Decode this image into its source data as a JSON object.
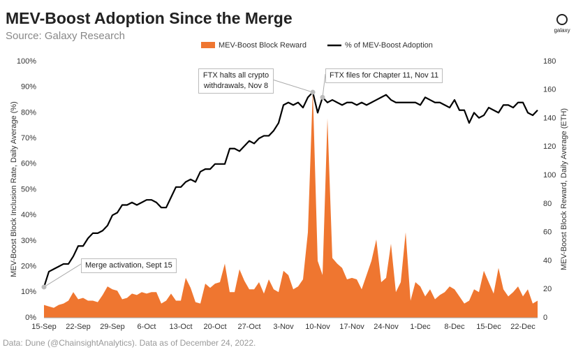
{
  "chart_data": {
    "type": "combo",
    "title": "MEV-Boost Adoption Since the Merge",
    "subtitle": "Source: Galaxy Research",
    "logo": "galaxy",
    "source": "Data: Dune (@ChainsightAnalytics). Data as of December 24, 2022.",
    "y_label": "MEV-Boost Block Inclusion Rate, Daily Average (%)",
    "y2_label": "MEV-Boost Block Reward, Daily Average (ETH)",
    "annotations": [
      "Merge activation, Sept 15",
      "FTX halts all crypto withdrawals, Nov 8",
      "FTX files for Chapter 11, Nov 11"
    ],
    "categories": [
      "15-Sep",
      null,
      null,
      null,
      null,
      null,
      null,
      "22-Sep",
      null,
      null,
      null,
      null,
      null,
      null,
      "29-Sep",
      null,
      null,
      null,
      null,
      null,
      null,
      "6-Oct",
      null,
      null,
      null,
      null,
      null,
      null,
      "13-Oct",
      null,
      null,
      null,
      null,
      null,
      null,
      "20-Oct",
      null,
      null,
      null,
      null,
      null,
      null,
      "27-Oct",
      null,
      null,
      null,
      null,
      null,
      null,
      "3-Nov",
      null,
      null,
      null,
      null,
      null,
      null,
      "10-Nov",
      null,
      null,
      null,
      null,
      null,
      null,
      "17-Nov",
      null,
      null,
      null,
      null,
      null,
      null,
      "24-Nov",
      null,
      null,
      null,
      null,
      null,
      null,
      "1-Dec",
      null,
      null,
      null,
      null,
      null,
      null,
      "8-Dec",
      null,
      null,
      null,
      null,
      null,
      null,
      "15-Dec",
      null,
      null,
      null,
      null,
      null,
      null,
      "22-Dec",
      null,
      null,
      null
    ],
    "series": [
      {
        "name": "MEV-Boost Block Reward",
        "type": "area",
        "axis": "y2",
        "color": "#ef7630",
        "values": [
          9,
          8,
          7,
          9,
          10,
          12,
          18,
          13,
          14,
          12,
          12,
          11,
          16,
          22,
          20,
          19,
          13,
          14,
          17,
          16,
          18,
          17,
          18,
          18,
          10,
          12,
          17,
          12,
          12,
          28,
          21,
          11,
          10,
          24,
          21,
          24,
          25,
          38,
          18,
          18,
          34,
          26,
          20,
          20,
          25,
          17,
          27,
          20,
          18,
          33,
          30,
          20,
          22,
          27,
          60,
          160,
          40,
          30,
          140,
          42,
          38,
          35,
          27,
          28,
          27,
          20,
          30,
          40,
          55,
          25,
          28,
          52,
          18,
          25,
          60,
          12,
          25,
          22,
          15,
          20,
          13,
          16,
          18,
          22,
          20,
          15,
          10,
          12,
          20,
          18,
          33,
          25,
          17,
          35,
          20,
          15,
          18,
          22,
          15,
          20,
          10,
          12
        ]
      },
      {
        "name": "% of MEV-Boost Adoption",
        "type": "line",
        "color": "#000000",
        "values": [
          12,
          18,
          19,
          20,
          21,
          21,
          24,
          28,
          28,
          31,
          33,
          33,
          34,
          36,
          40,
          41,
          44,
          44,
          45,
          44,
          45,
          46,
          46,
          45,
          43,
          43,
          47,
          51,
          51,
          53,
          54,
          53,
          57,
          58,
          58,
          60,
          60,
          60,
          66,
          66,
          65,
          67,
          69,
          68,
          70,
          71,
          71,
          73,
          76,
          83,
          84,
          83,
          84,
          82,
          86,
          88,
          80,
          86,
          84,
          85,
          84,
          83,
          84,
          84,
          83,
          84,
          83,
          84,
          85,
          86,
          87,
          85,
          84,
          84,
          84,
          84,
          84,
          83,
          86,
          85,
          84,
          84,
          83,
          82,
          85,
          81,
          81,
          76,
          80,
          78,
          79,
          82,
          81,
          80,
          83,
          83,
          82,
          84,
          84,
          80,
          79,
          81
        ]
      }
    ],
    "ylim": [
      0,
      100
    ],
    "yticks": [
      {
        "value": 0,
        "label": "0%"
      },
      {
        "value": 10,
        "label": "10%"
      },
      {
        "value": 20,
        "label": "20%"
      },
      {
        "value": 30,
        "label": "30%"
      },
      {
        "value": 40,
        "label": "40%"
      },
      {
        "value": 50,
        "label": "50%"
      },
      {
        "value": 60,
        "label": "60%"
      },
      {
        "value": 70,
        "label": "70%"
      },
      {
        "value": 80,
        "label": "80%"
      },
      {
        "value": 90,
        "label": "90%"
      },
      {
        "value": 100,
        "label": "100%"
      }
    ],
    "y2lim": [
      0,
      180
    ],
    "y2ticks": [
      0,
      20,
      40,
      60,
      80,
      100,
      120,
      140,
      160,
      180
    ],
    "legend": "top"
  }
}
